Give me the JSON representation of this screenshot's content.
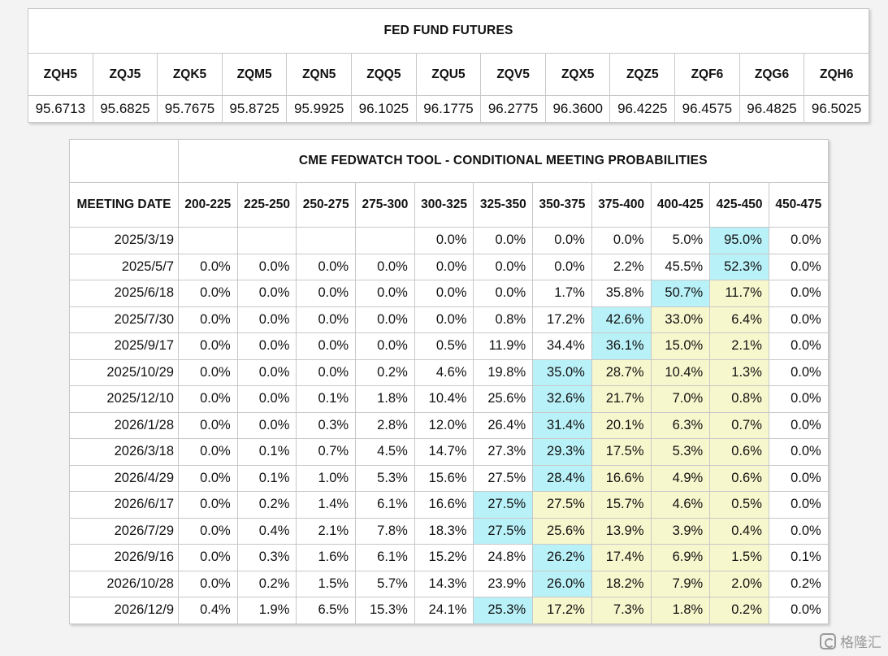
{
  "futures": {
    "title": "FED FUND FUTURES",
    "contracts": [
      {
        "code": "ZQH5",
        "price": "95.6713"
      },
      {
        "code": "ZQJ5",
        "price": "95.6825"
      },
      {
        "code": "ZQK5",
        "price": "95.7675"
      },
      {
        "code": "ZQM5",
        "price": "95.8725"
      },
      {
        "code": "ZQN5",
        "price": "95.9925"
      },
      {
        "code": "ZQQ5",
        "price": "96.1025"
      },
      {
        "code": "ZQU5",
        "price": "96.1775"
      },
      {
        "code": "ZQV5",
        "price": "96.2775"
      },
      {
        "code": "ZQX5",
        "price": "96.3600"
      },
      {
        "code": "ZQZ5",
        "price": "96.4225"
      },
      {
        "code": "ZQF6",
        "price": "96.4575"
      },
      {
        "code": "ZQG6",
        "price": "96.4825"
      },
      {
        "code": "ZQH6",
        "price": "96.5025"
      }
    ]
  },
  "fedwatch": {
    "title": "CME FEDWATCH TOOL - CONDITIONAL MEETING PROBABILITIES",
    "date_header": "MEETING DATE",
    "ranges": [
      "200-225",
      "225-250",
      "250-275",
      "275-300",
      "300-325",
      "325-350",
      "350-375",
      "375-400",
      "400-425",
      "425-450",
      "450-475"
    ],
    "highlight_colors": {
      "cyan": "#b9f1f8",
      "yellow": "#f7f7cd"
    },
    "rows": [
      {
        "date": "2025/3/19",
        "values": [
          "",
          "",
          "",
          "",
          "0.0%",
          "0.0%",
          "0.0%",
          "0.0%",
          "5.0%",
          "95.0%",
          "0.0%"
        ],
        "cyan": [
          9
        ],
        "yellow": []
      },
      {
        "date": "2025/5/7",
        "values": [
          "0.0%",
          "0.0%",
          "0.0%",
          "0.0%",
          "0.0%",
          "0.0%",
          "0.0%",
          "2.2%",
          "45.5%",
          "52.3%",
          "0.0%"
        ],
        "cyan": [
          9
        ],
        "yellow": []
      },
      {
        "date": "2025/6/18",
        "values": [
          "0.0%",
          "0.0%",
          "0.0%",
          "0.0%",
          "0.0%",
          "0.0%",
          "1.7%",
          "35.8%",
          "50.7%",
          "11.7%",
          "0.0%"
        ],
        "cyan": [
          8
        ],
        "yellow": [
          9
        ]
      },
      {
        "date": "2025/7/30",
        "values": [
          "0.0%",
          "0.0%",
          "0.0%",
          "0.0%",
          "0.0%",
          "0.8%",
          "17.2%",
          "42.6%",
          "33.0%",
          "6.4%",
          "0.0%"
        ],
        "cyan": [
          7
        ],
        "yellow": [
          8,
          9
        ]
      },
      {
        "date": "2025/9/17",
        "values": [
          "0.0%",
          "0.0%",
          "0.0%",
          "0.0%",
          "0.5%",
          "11.9%",
          "34.4%",
          "36.1%",
          "15.0%",
          "2.1%",
          "0.0%"
        ],
        "cyan": [
          7
        ],
        "yellow": [
          8,
          9
        ]
      },
      {
        "date": "2025/10/29",
        "values": [
          "0.0%",
          "0.0%",
          "0.0%",
          "0.2%",
          "4.6%",
          "19.8%",
          "35.0%",
          "28.7%",
          "10.4%",
          "1.3%",
          "0.0%"
        ],
        "cyan": [
          6
        ],
        "yellow": [
          7,
          8,
          9
        ]
      },
      {
        "date": "2025/12/10",
        "values": [
          "0.0%",
          "0.0%",
          "0.1%",
          "1.8%",
          "10.4%",
          "25.6%",
          "32.6%",
          "21.7%",
          "7.0%",
          "0.8%",
          "0.0%"
        ],
        "cyan": [
          6
        ],
        "yellow": [
          7,
          8,
          9
        ]
      },
      {
        "date": "2026/1/28",
        "values": [
          "0.0%",
          "0.0%",
          "0.3%",
          "2.8%",
          "12.0%",
          "26.4%",
          "31.4%",
          "20.1%",
          "6.3%",
          "0.7%",
          "0.0%"
        ],
        "cyan": [
          6
        ],
        "yellow": [
          7,
          8,
          9
        ]
      },
      {
        "date": "2026/3/18",
        "values": [
          "0.0%",
          "0.1%",
          "0.7%",
          "4.5%",
          "14.7%",
          "27.3%",
          "29.3%",
          "17.5%",
          "5.3%",
          "0.6%",
          "0.0%"
        ],
        "cyan": [
          6
        ],
        "yellow": [
          7,
          8,
          9
        ]
      },
      {
        "date": "2026/4/29",
        "values": [
          "0.0%",
          "0.1%",
          "1.0%",
          "5.3%",
          "15.6%",
          "27.5%",
          "28.4%",
          "16.6%",
          "4.9%",
          "0.6%",
          "0.0%"
        ],
        "cyan": [
          6
        ],
        "yellow": [
          7,
          8,
          9
        ]
      },
      {
        "date": "2026/6/17",
        "values": [
          "0.0%",
          "0.2%",
          "1.4%",
          "6.1%",
          "16.6%",
          "27.5%",
          "27.5%",
          "15.7%",
          "4.6%",
          "0.5%",
          "0.0%"
        ],
        "cyan": [
          5
        ],
        "yellow": [
          6,
          7,
          8,
          9
        ]
      },
      {
        "date": "2026/7/29",
        "values": [
          "0.0%",
          "0.4%",
          "2.1%",
          "7.8%",
          "18.3%",
          "27.5%",
          "25.6%",
          "13.9%",
          "3.9%",
          "0.4%",
          "0.0%"
        ],
        "cyan": [
          5
        ],
        "yellow": [
          6,
          7,
          8,
          9
        ]
      },
      {
        "date": "2026/9/16",
        "values": [
          "0.0%",
          "0.3%",
          "1.6%",
          "6.1%",
          "15.2%",
          "24.8%",
          "26.2%",
          "17.4%",
          "6.9%",
          "1.5%",
          "0.1%"
        ],
        "cyan": [
          6
        ],
        "yellow": [
          7,
          8,
          9
        ]
      },
      {
        "date": "2026/10/28",
        "values": [
          "0.0%",
          "0.2%",
          "1.5%",
          "5.7%",
          "14.3%",
          "23.9%",
          "26.0%",
          "18.2%",
          "7.9%",
          "2.0%",
          "0.2%"
        ],
        "cyan": [
          6
        ],
        "yellow": [
          7,
          8,
          9
        ]
      },
      {
        "date": "2026/12/9",
        "values": [
          "0.4%",
          "1.9%",
          "6.5%",
          "15.3%",
          "24.1%",
          "25.3%",
          "17.2%",
          "7.3%",
          "1.8%",
          "0.2%",
          "0.0%"
        ],
        "cyan": [
          5
        ],
        "yellow": [
          6,
          7,
          8,
          9
        ]
      }
    ]
  },
  "watermark": {
    "text": "格隆汇",
    "icon": "gelonghui-logo-icon"
  }
}
